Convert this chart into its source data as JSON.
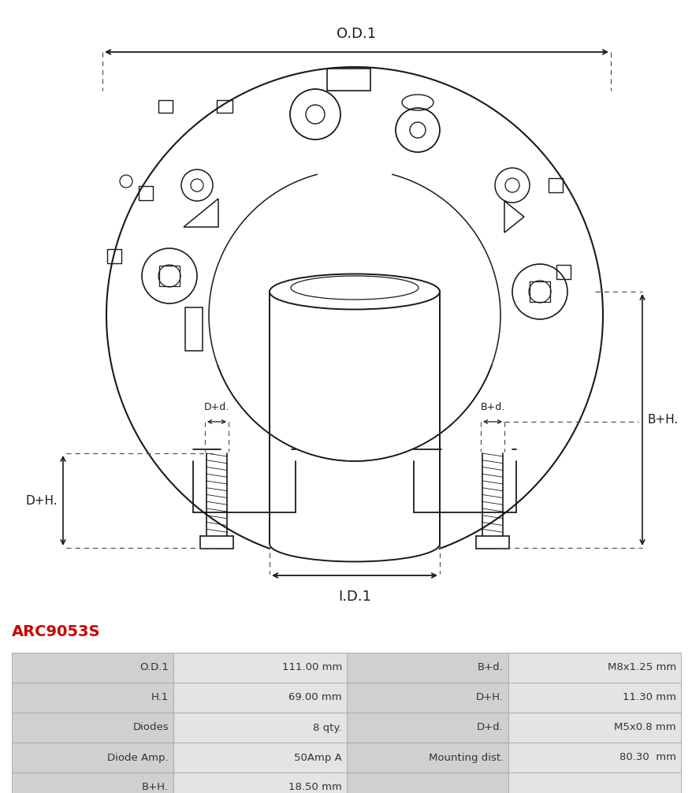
{
  "title": "ARC9053S",
  "title_color": "#cc0000",
  "table_rows": [
    [
      "O.D.1",
      "111.00 mm",
      "B+d.",
      "M8x1.25 mm"
    ],
    [
      "H.1",
      "69.00 mm",
      "D+H.",
      "11.30 mm"
    ],
    [
      "Diodes",
      "8 qty.",
      "D+d.",
      "M5x0.8 mm"
    ],
    [
      "Diode Amp.",
      "50Amp A",
      "Mounting dist.",
      "80.30  mm"
    ],
    [
      "B+H.",
      "18.50 mm",
      "",
      ""
    ]
  ],
  "lc": "#1a1a1a",
  "bg": "#ffffff",
  "table_label_bg": "#d0d0d0",
  "table_value_bg": "#e4e4e4",
  "table_border": "#aaaaaa",
  "title_fontsize": 13,
  "table_fontsize": 9
}
